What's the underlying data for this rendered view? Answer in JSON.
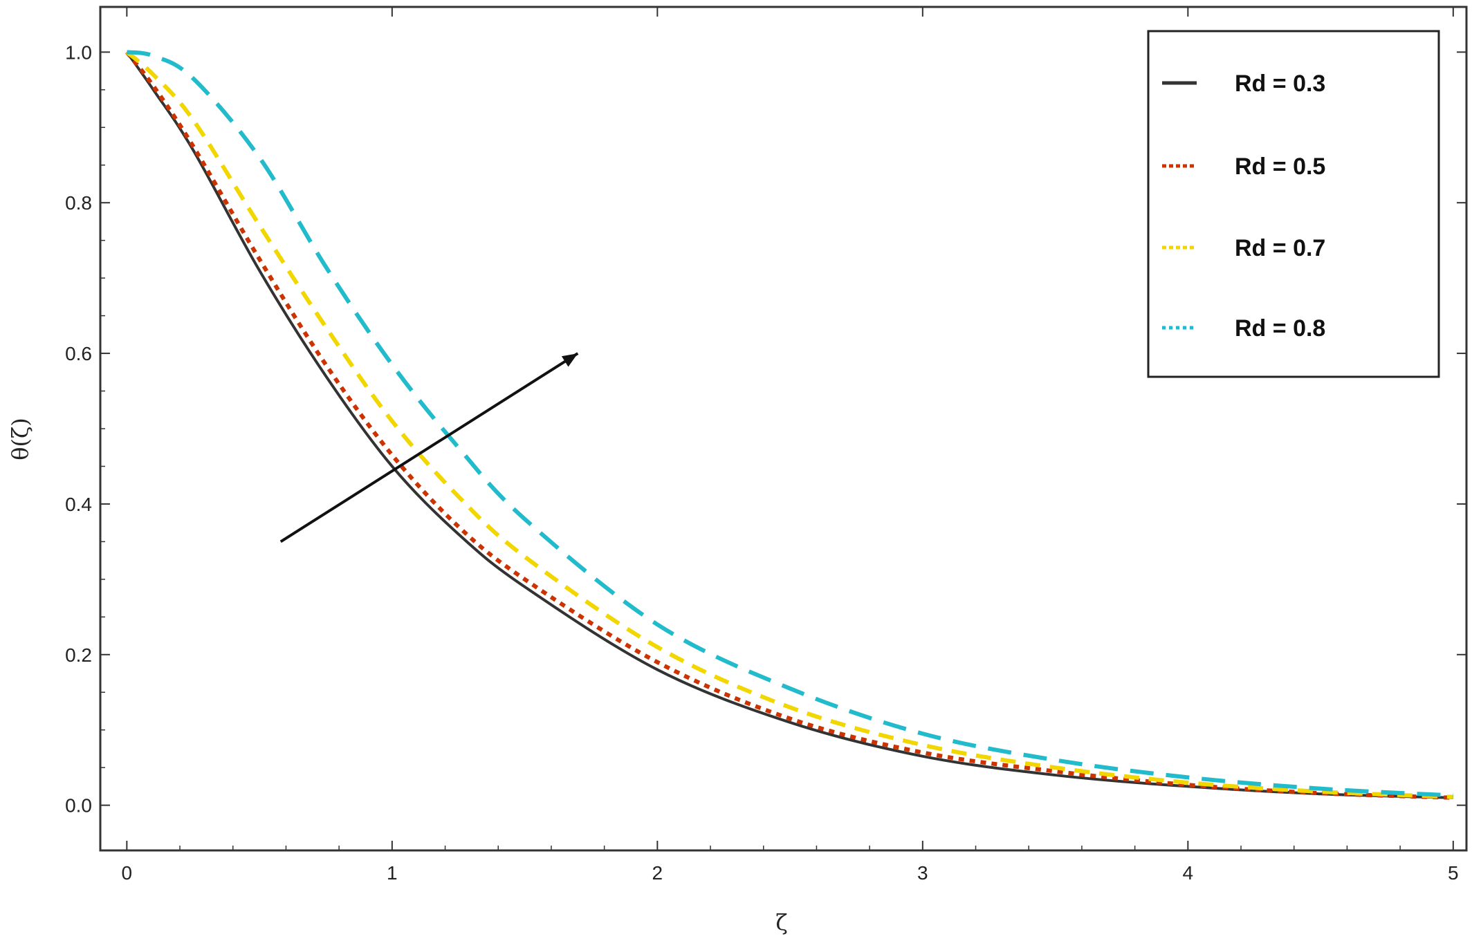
{
  "chart_data": {
    "type": "line",
    "xlabel": "ζ",
    "ylabel": "θ(ζ)",
    "xlim": [
      -0.1,
      5.05
    ],
    "ylim": [
      -0.06,
      1.06
    ],
    "xticks": [
      "0",
      "1",
      "2",
      "3",
      "4",
      "5"
    ],
    "yticks": [
      "0.0",
      "0.2",
      "0.4",
      "0.6",
      "0.8",
      "1.0"
    ],
    "grid": false,
    "legend_position": "top-right",
    "x": [
      0,
      0.1,
      0.25,
      0.5,
      0.75,
      1.0,
      1.25,
      1.5,
      2.0,
      2.5,
      3.0,
      3.5,
      4.0,
      4.5,
      5.0
    ],
    "series": [
      {
        "name": "Rd = 0.3",
        "color": "#333333",
        "dash": "solid",
        "values": [
          1.0,
          0.95,
          0.87,
          0.71,
          0.57,
          0.45,
          0.36,
          0.29,
          0.18,
          0.11,
          0.065,
          0.04,
          0.025,
          0.015,
          0.01
        ]
      },
      {
        "name": "Rd = 0.5",
        "color": "#cc3300",
        "dash": "dotted",
        "values": [
          1.0,
          0.955,
          0.875,
          0.725,
          0.585,
          0.465,
          0.37,
          0.3,
          0.19,
          0.115,
          0.07,
          0.045,
          0.027,
          0.016,
          0.01
        ]
      },
      {
        "name": "Rd = 0.7",
        "color": "#f2d600",
        "dash": "dashed",
        "values": [
          1.0,
          0.97,
          0.91,
          0.77,
          0.635,
          0.51,
          0.41,
          0.33,
          0.21,
          0.13,
          0.08,
          0.05,
          0.03,
          0.018,
          0.011
        ]
      },
      {
        "name": "Rd = 0.8",
        "color": "#22bbcc",
        "dash": "long-dashed",
        "values": [
          1.0,
          0.995,
          0.965,
          0.86,
          0.715,
          0.585,
          0.475,
          0.38,
          0.24,
          0.155,
          0.095,
          0.06,
          0.037,
          0.022,
          0.013
        ]
      }
    ],
    "annotation_arrow": {
      "from": [
        0.58,
        0.35
      ],
      "to": [
        1.7,
        0.6
      ]
    }
  }
}
